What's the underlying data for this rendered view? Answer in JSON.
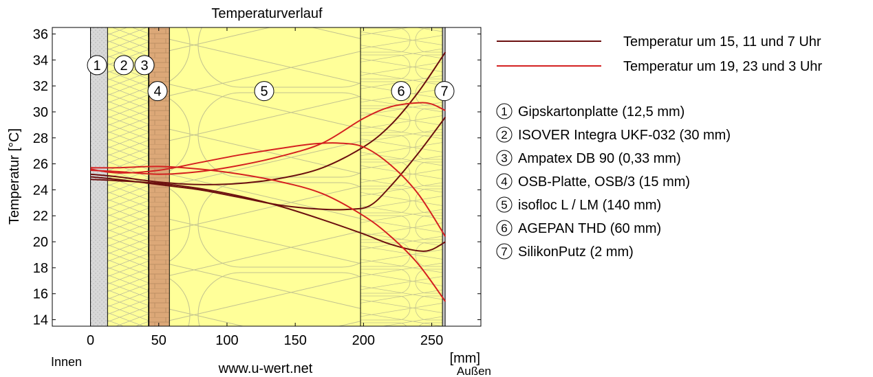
{
  "chart_data": {
    "type": "line",
    "title": "Temperaturverlauf",
    "xlabel": "[mm]",
    "ylabel": "Temperatur [°C]",
    "xlim": [
      -28,
      286
    ],
    "ylim": [
      13.5,
      36.5
    ],
    "xticks": [
      0,
      50,
      100,
      150,
      200,
      250
    ],
    "yticks": [
      14,
      16,
      18,
      20,
      22,
      24,
      26,
      28,
      30,
      32,
      34,
      36
    ],
    "grid": false,
    "legend_position": "right",
    "annotations": {
      "left": "Innen",
      "right": "Außen",
      "center": "www.u-wert.net"
    },
    "layers": [
      {
        "id": "1",
        "name": "Gipskartonplatte (12,5 mm)",
        "x_start": 0,
        "x_end": 12.5,
        "fill": "#d8d8d8",
        "pattern": "dots"
      },
      {
        "id": "2",
        "name": "ISOVER Integra UKF-032 (30 mm)",
        "x_start": 12.5,
        "x_end": 42.5,
        "fill": "#ffff99",
        "pattern": "insulation"
      },
      {
        "id": "3",
        "name": "Ampatex DB 90 (0,33 mm)",
        "x_start": 42.5,
        "x_end": 42.83,
        "fill": "#000000",
        "pattern": "membrane"
      },
      {
        "id": "4",
        "name": "OSB-Platte, OSB/3 (15 mm)",
        "x_start": 42.83,
        "x_end": 57.83,
        "fill": "#dca878",
        "pattern": "bricks"
      },
      {
        "id": "5",
        "name": "isofloc L / LM (140 mm)",
        "x_start": 57.83,
        "x_end": 197.83,
        "fill": "#ffff99",
        "pattern": "insulation"
      },
      {
        "id": "6",
        "name": "AGEPAN THD (60 mm)",
        "x_start": 197.83,
        "x_end": 257.83,
        "fill": "#ffff99",
        "pattern": "insulation"
      },
      {
        "id": "7",
        "name": "SilikonPutz (2 mm)",
        "x_start": 257.83,
        "x_end": 259.83,
        "fill": "#c8c8c8",
        "pattern": "solid"
      }
    ],
    "series": [
      {
        "name": "Temperatur um 15, 11 und 7 Uhr",
        "color": "#6b0f0f",
        "curves": [
          {
            "x": [
              0,
              20,
              50,
              80,
              110,
              140,
              170,
              200,
              220,
              240,
              260
            ],
            "y": [
              25.2,
              25.0,
              24.6,
              24.4,
              24.5,
              24.9,
              25.7,
              27.3,
              29.0,
              31.5,
              34.6
            ]
          },
          {
            "x": [
              0,
              20,
              50,
              80,
              110,
              140,
              170,
              190,
              205,
              220,
              240,
              260
            ],
            "y": [
              25.0,
              24.8,
              24.4,
              24.0,
              23.4,
              22.8,
              22.5,
              22.5,
              22.8,
              24.3,
              26.8,
              29.6
            ]
          },
          {
            "x": [
              0,
              20,
              50,
              80,
              110,
              140,
              170,
              200,
              220,
              240,
              250,
              260
            ],
            "y": [
              24.8,
              24.7,
              24.5,
              24.1,
              23.5,
              22.7,
              21.7,
              20.6,
              19.8,
              19.3,
              19.4,
              20.0
            ]
          }
        ]
      },
      {
        "name": "Temperatur um 19, 23 und 3 Uhr",
        "color": "#d42020",
        "curves": [
          {
            "x": [
              0,
              20,
              50,
              80,
              110,
              140,
              170,
              200,
              220,
              240,
              250,
              260
            ],
            "y": [
              25.5,
              25.4,
              25.2,
              25.4,
              25.9,
              26.6,
              27.6,
              29.5,
              30.4,
              30.7,
              30.6,
              30.1
            ]
          },
          {
            "x": [
              0,
              20,
              50,
              80,
              110,
              140,
              160,
              180,
              200,
              220,
              240,
              260
            ],
            "y": [
              25.6,
              25.3,
              25.5,
              26.1,
              26.7,
              27.2,
              27.5,
              27.6,
              27.3,
              25.9,
              23.7,
              20.4
            ]
          },
          {
            "x": [
              0,
              20,
              50,
              80,
              110,
              140,
              170,
              200,
              220,
              240,
              260
            ],
            "y": [
              25.7,
              25.7,
              25.8,
              25.6,
              25.2,
              24.6,
              23.7,
              22.0,
              20.4,
              18.3,
              15.4
            ]
          }
        ]
      }
    ]
  }
}
